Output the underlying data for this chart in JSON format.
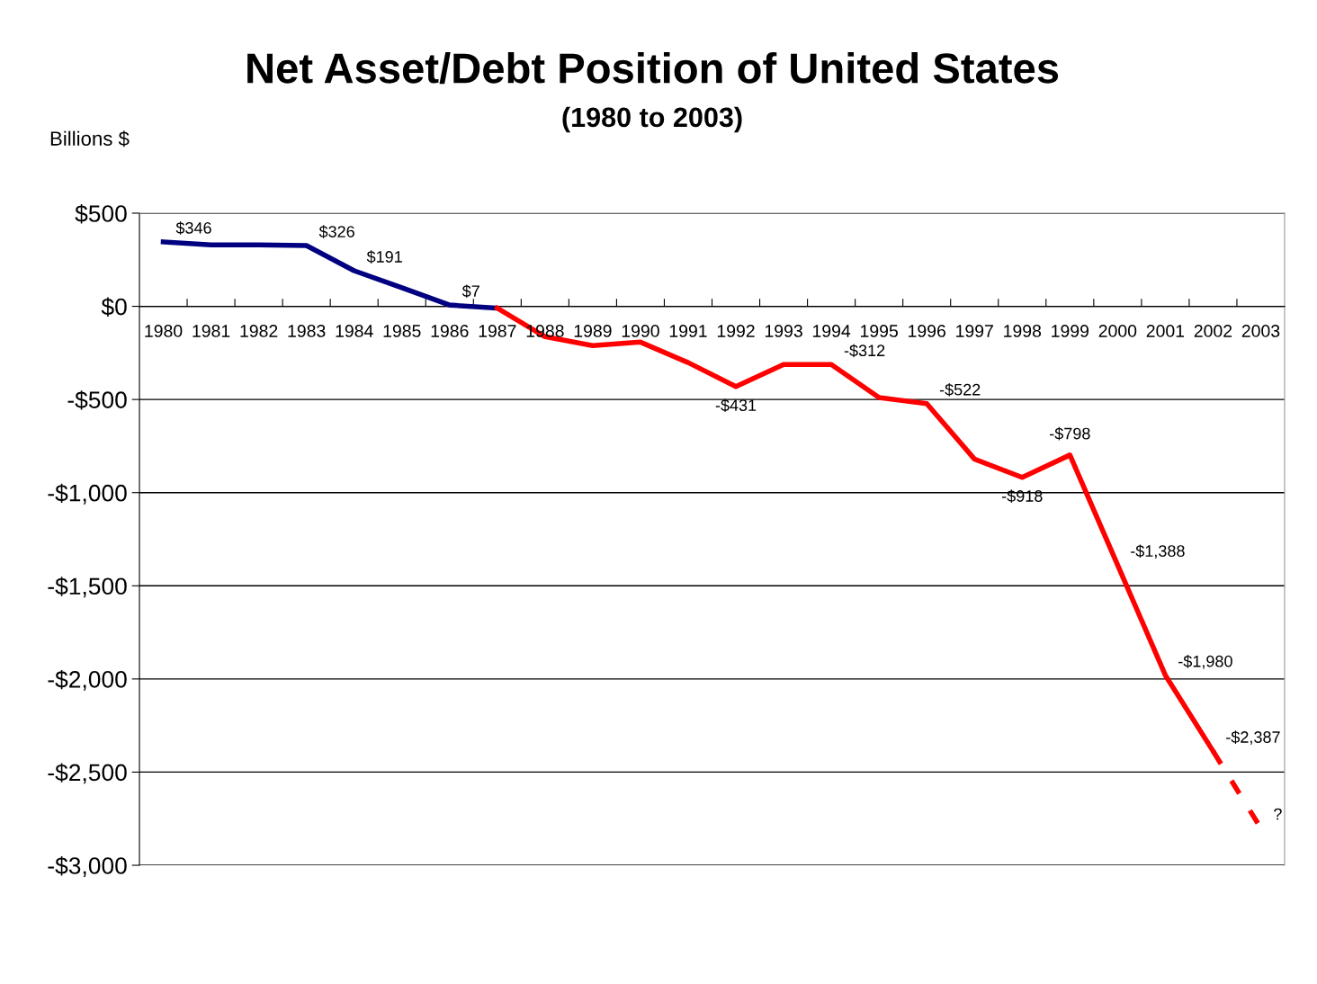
{
  "chart_data": {
    "type": "line",
    "title": "Net Asset/Debt Position of United States",
    "subtitle": "(1980 to 2003)",
    "ylabel": "Billions $",
    "categories": [
      "1980",
      "1981",
      "1982",
      "1983",
      "1984",
      "1985",
      "1986",
      "1987",
      "1988",
      "1989",
      "1990",
      "1991",
      "1992",
      "1993",
      "1994",
      "1995",
      "1996",
      "1997",
      "1998",
      "1999",
      "2000",
      "2001",
      "2002",
      "2003"
    ],
    "series": [
      {
        "color": "#000080",
        "line_style": "solid",
        "values": [
          346,
          330,
          330,
          326,
          191,
          100,
          7,
          -10,
          null,
          null,
          null,
          null,
          null,
          null,
          null,
          null,
          null,
          null,
          null,
          null,
          null,
          null,
          null,
          null
        ],
        "value_labels": [
          "$346",
          null,
          null,
          "$326",
          "$191",
          null,
          "$7",
          null,
          null,
          null,
          null,
          null,
          null,
          null,
          null,
          null,
          null,
          null,
          null,
          null,
          null,
          null,
          null,
          null
        ]
      },
      {
        "color": "#ff0000",
        "line_style": "solid",
        "values": [
          null,
          null,
          null,
          null,
          null,
          null,
          null,
          -10,
          -163,
          -211,
          -192,
          -302,
          -431,
          -312,
          -312,
          -490,
          -522,
          -820,
          -918,
          -798,
          -1388,
          -1980,
          -2387,
          null
        ],
        "value_labels": [
          null,
          null,
          null,
          null,
          null,
          null,
          null,
          null,
          null,
          null,
          null,
          null,
          "-$431",
          null,
          "-$312",
          null,
          "-$522",
          null,
          "-$918",
          "-$798",
          "-$1,388",
          "-$1,980",
          "-$2,387",
          null
        ]
      },
      {
        "color": "#ff0000",
        "line_style": "dashed",
        "values": [
          null,
          null,
          null,
          null,
          null,
          null,
          null,
          null,
          null,
          null,
          null,
          null,
          null,
          null,
          null,
          null,
          null,
          null,
          null,
          null,
          null,
          null,
          -2387,
          -2800
        ],
        "value_labels": [
          null,
          null,
          null,
          null,
          null,
          null,
          null,
          null,
          null,
          null,
          null,
          null,
          null,
          null,
          null,
          null,
          null,
          null,
          null,
          null,
          null,
          null,
          null,
          "?"
        ]
      }
    ],
    "ylim": [
      -3000,
      500
    ],
    "yticks": [
      {
        "value": 500,
        "label": "$500"
      },
      {
        "value": 0,
        "label": "$0"
      },
      {
        "value": -500,
        "label": "-$500"
      },
      {
        "value": -1000,
        "label": "-$1,000"
      },
      {
        "value": -1500,
        "label": "-$1,500"
      },
      {
        "value": -2000,
        "label": "-$2,000"
      },
      {
        "value": -2500,
        "label": "-$2,500"
      },
      {
        "value": -3000,
        "label": "-$3,000"
      }
    ],
    "grid": "y",
    "legend": false
  }
}
